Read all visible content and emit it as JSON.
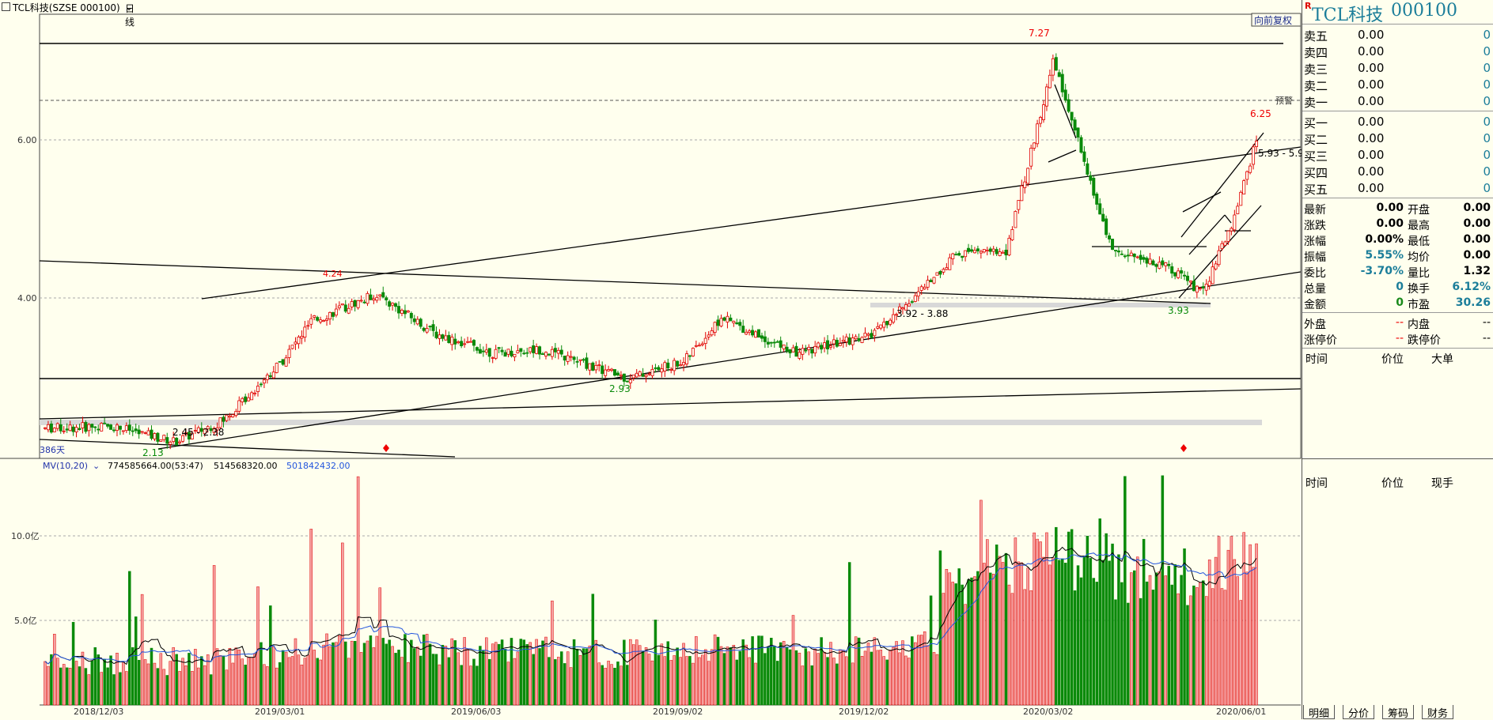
{
  "title": {
    "text": "TCL科技(SZSE 000100)",
    "period": "日线"
  },
  "chart_labels": {
    "restore": "向前复权",
    "warn": "预警",
    "ind_label": "MV(10,20)",
    "mv_val": "774585664.00(53:47)",
    "ma10_val": "514568320.00",
    "ma20_val": "501842432.00",
    "days": "386天",
    "ann_727": "7.27",
    "ann_625": "6.25",
    "ann_424": "4.24",
    "ann_593": "5.93 - 5.9",
    "ann_392": "3.92 - 3.88",
    "ann_393": "3.93",
    "ann_293": "2.93",
    "ann_245": "2.45 - 2.38",
    "ann_213": "2.13"
  },
  "colors": {
    "background": "#ffffee",
    "up": "#e00000",
    "down": "#0a8a0a",
    "vol_up_fill": "#f5a0a0",
    "ma10": "#000000",
    "ma20": "#2255dd",
    "accent_teal": "#1c7e9a"
  },
  "chart_data": [
    {
      "type": "candlestick",
      "title": "TCL科技(SZSE 000100)",
      "period": "日线",
      "x_labels": [
        "2018/12/03",
        "2019/03/01",
        "2019/06/03",
        "2019/09/02",
        "2019/12/02",
        "2020/03/02",
        "2020/06/01"
      ],
      "y_ticks": [
        "6.00",
        "4.00"
      ],
      "ylim": [
        1.9,
        7.4
      ],
      "anchors": [
        {
          "x": "2018/11/01",
          "close": 2.35
        },
        {
          "x": "2018/12/03",
          "close": 2.38
        },
        {
          "x": "2019/01/02",
          "close": 2.18
        },
        {
          "x": "2019/01/25",
          "close": 2.45
        },
        {
          "x": "2019/02/22",
          "close": 3.2
        },
        {
          "x": "2019/03/08",
          "close": 3.7
        },
        {
          "x": "2019/04/08",
          "close": 4.05
        },
        {
          "x": "2019/05/06",
          "close": 3.55
        },
        {
          "x": "2019/06/03",
          "close": 3.3
        },
        {
          "x": "2019/06/26",
          "close": 3.35
        },
        {
          "x": "2019/08/06",
          "close": 2.98
        },
        {
          "x": "2019/09/02",
          "close": 3.2
        },
        {
          "x": "2019/09/20",
          "close": 3.75
        },
        {
          "x": "2019/10/25",
          "close": 3.3
        },
        {
          "x": "2019/11/25",
          "close": 3.5
        },
        {
          "x": "2019/12/02",
          "close": 3.55
        },
        {
          "x": "2019/12/20",
          "close": 4.0
        },
        {
          "x": "2020/01/10",
          "close": 4.55
        },
        {
          "x": "2020/02/03",
          "close": 4.6
        },
        {
          "x": "2020/02/25",
          "close": 7.0
        },
        {
          "x": "2020/03/09",
          "close": 5.9
        },
        {
          "x": "2020/03/24",
          "close": 4.6
        },
        {
          "x": "2020/04/20",
          "close": 4.4
        },
        {
          "x": "2020/05/06",
          "close": 4.05
        },
        {
          "x": "2020/05/20",
          "close": 4.9
        },
        {
          "x": "2020/06/01",
          "close": 6.0
        }
      ],
      "price_labels": [
        {
          "x": "2020/02/25",
          "value": 7.27
        },
        {
          "x": "2020/06/01",
          "value": 6.25
        },
        {
          "x": "2019/04/08",
          "value": 4.24
        },
        {
          "x": "2020/05/06",
          "value": 3.93
        },
        {
          "x": "2019/08/06",
          "value": 2.93
        },
        {
          "x": "2019/01/02",
          "value": 2.13
        }
      ],
      "drawn_lines": [
        {
          "kind": "horizontal",
          "value": 7.2
        },
        {
          "kind": "horizontal",
          "value": 6.5,
          "style": "dashed"
        },
        {
          "kind": "horizontal",
          "value": 2.93
        }
      ]
    },
    {
      "type": "bar",
      "title": "MV(10,20)",
      "y_ticks": [
        "10.0亿",
        "5.0亿"
      ],
      "ylim": [
        0,
        14
      ],
      "unit": "亿",
      "series": [
        {
          "name": "MV",
          "latest": 774585664.0
        },
        {
          "name": "MA10",
          "latest": 514568320.0
        },
        {
          "name": "MA20",
          "latest": 501842432.0
        }
      ]
    }
  ],
  "right_panel": {
    "name": "TCL科技",
    "code": "000100",
    "sell": [
      {
        "label": "卖五",
        "price": "0.00",
        "vol": "0"
      },
      {
        "label": "卖四",
        "price": "0.00",
        "vol": "0"
      },
      {
        "label": "卖三",
        "price": "0.00",
        "vol": "0"
      },
      {
        "label": "卖二",
        "price": "0.00",
        "vol": "0"
      },
      {
        "label": "卖一",
        "price": "0.00",
        "vol": "0"
      }
    ],
    "buy": [
      {
        "label": "买一",
        "price": "0.00",
        "vol": "0"
      },
      {
        "label": "买二",
        "price": "0.00",
        "vol": "0"
      },
      {
        "label": "买三",
        "price": "0.00",
        "vol": "0"
      },
      {
        "label": "买四",
        "price": "0.00",
        "vol": "0"
      },
      {
        "label": "买五",
        "price": "0.00",
        "vol": "0"
      }
    ],
    "quotes": [
      {
        "l": "最新",
        "lv": "0.00",
        "r": "开盘",
        "rv": "0.00"
      },
      {
        "l": "涨跌",
        "lv": "0.00",
        "r": "最高",
        "rv": "0.00"
      },
      {
        "l": "涨幅",
        "lv": "0.00%",
        "r": "最低",
        "rv": "0.00"
      },
      {
        "l": "振幅",
        "lv": "5.55%",
        "r": "均价",
        "rv": "0.00"
      },
      {
        "l": "委比",
        "lv": "-3.70%",
        "r": "量比",
        "rv": "1.32"
      },
      {
        "l": "总量",
        "lv": "0",
        "r": "换手",
        "rv": "6.12%"
      },
      {
        "l": "金额",
        "lv": "0",
        "r": "市盈",
        "rv": "30.26"
      }
    ],
    "outer": {
      "l": "外盘",
      "lv": "--",
      "r": "内盘",
      "rv": "--"
    },
    "limit": {
      "l": "涨停价",
      "lv": "--",
      "r": "跌停价",
      "rv": "--"
    },
    "tick_header1": [
      "时间",
      "价位",
      "大单"
    ],
    "tick_header2": [
      "时间",
      "价位",
      "现手"
    ],
    "tabs": [
      "明细",
      "分价",
      "筹码",
      "财务"
    ]
  }
}
